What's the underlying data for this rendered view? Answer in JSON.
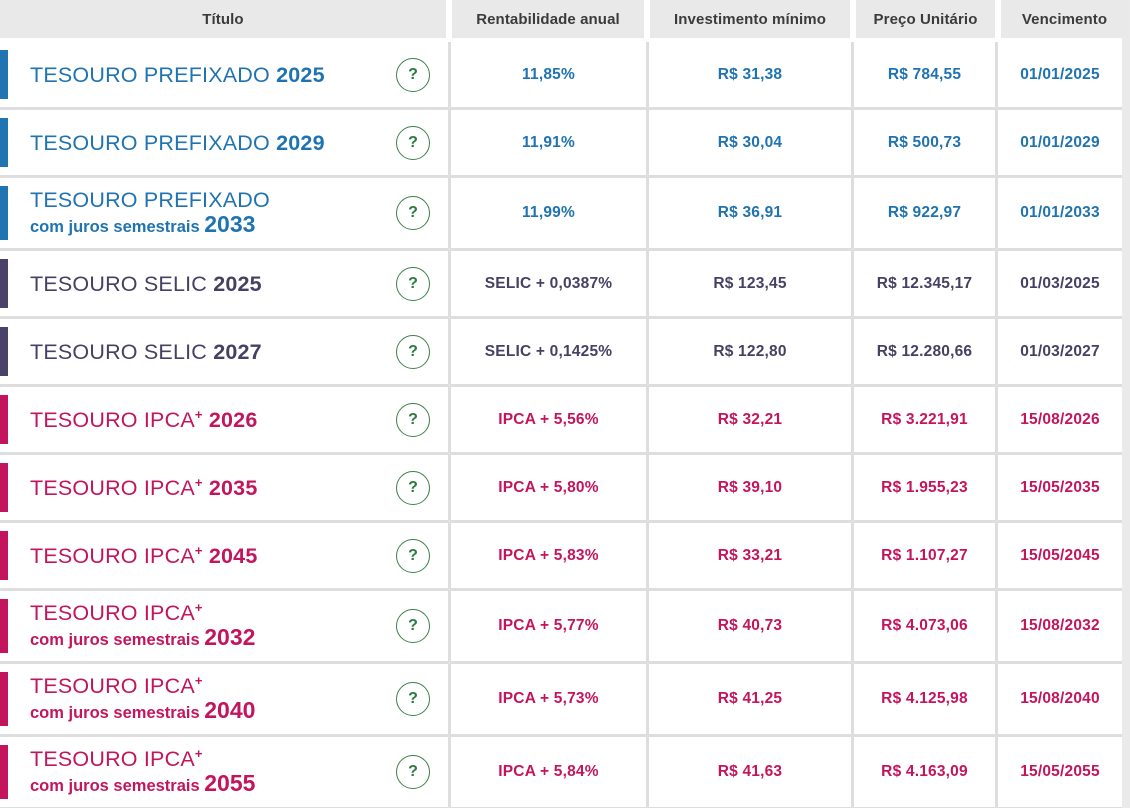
{
  "table": {
    "columns": [
      {
        "label": "Título"
      },
      {
        "label": "Rentabilidade anual"
      },
      {
        "label": "Investimento mínimo"
      },
      {
        "label": "Preço Unitário"
      },
      {
        "label": "Vencimento"
      }
    ],
    "help_icon_glyph": "?",
    "rows": [
      {
        "group": "prefixado",
        "title": "TESOURO PREFIXADO",
        "sup": "",
        "subtitle": "",
        "year": "2025",
        "rate": "11,85%",
        "min_investment": "R$ 31,38",
        "unit_price": "R$ 784,55",
        "maturity": "01/01/2025"
      },
      {
        "group": "prefixado",
        "title": "TESOURO PREFIXADO",
        "sup": "",
        "subtitle": "",
        "year": "2029",
        "rate": "11,91%",
        "min_investment": "R$ 30,04",
        "unit_price": "R$ 500,73",
        "maturity": "01/01/2029"
      },
      {
        "group": "prefixado",
        "title": "TESOURO PREFIXADO",
        "sup": "",
        "subtitle": "com juros semestrais",
        "year": "2033",
        "rate": "11,99%",
        "min_investment": "R$ 36,91",
        "unit_price": "R$ 922,97",
        "maturity": "01/01/2033"
      },
      {
        "group": "selic",
        "title": "TESOURO SELIC",
        "sup": "",
        "subtitle": "",
        "year": "2025",
        "rate": "SELIC + 0,0387%",
        "min_investment": "R$ 123,45",
        "unit_price": "R$ 12.345,17",
        "maturity": "01/03/2025"
      },
      {
        "group": "selic",
        "title": "TESOURO SELIC",
        "sup": "",
        "subtitle": "",
        "year": "2027",
        "rate": "SELIC + 0,1425%",
        "min_investment": "R$ 122,80",
        "unit_price": "R$ 12.280,66",
        "maturity": "01/03/2027"
      },
      {
        "group": "ipca",
        "title": "TESOURO IPCA",
        "sup": "+",
        "subtitle": "",
        "year": "2026",
        "rate": "IPCA + 5,56%",
        "min_investment": "R$ 32,21",
        "unit_price": "R$ 3.221,91",
        "maturity": "15/08/2026"
      },
      {
        "group": "ipca",
        "title": "TESOURO IPCA",
        "sup": "+",
        "subtitle": "",
        "year": "2035",
        "rate": "IPCA + 5,80%",
        "min_investment": "R$ 39,10",
        "unit_price": "R$ 1.955,23",
        "maturity": "15/05/2035"
      },
      {
        "group": "ipca",
        "title": "TESOURO IPCA",
        "sup": "+",
        "subtitle": "",
        "year": "2045",
        "rate": "IPCA + 5,83%",
        "min_investment": "R$ 33,21",
        "unit_price": "R$ 1.107,27",
        "maturity": "15/05/2045"
      },
      {
        "group": "ipca",
        "title": "TESOURO IPCA",
        "sup": "+",
        "subtitle": "com juros semestrais",
        "year": "2032",
        "rate": "IPCA + 5,77%",
        "min_investment": "R$ 40,73",
        "unit_price": "R$ 4.073,06",
        "maturity": "15/08/2032"
      },
      {
        "group": "ipca",
        "title": "TESOURO IPCA",
        "sup": "+",
        "subtitle": "com juros semestrais",
        "year": "2040",
        "rate": "IPCA + 5,73%",
        "min_investment": "R$ 41,25",
        "unit_price": "R$ 4.125,98",
        "maturity": "15/08/2040"
      },
      {
        "group": "ipca",
        "title": "TESOURO IPCA",
        "sup": "+",
        "subtitle": "com juros semestrais",
        "year": "2055",
        "rate": "IPCA + 5,84%",
        "min_investment": "R$ 41,63",
        "unit_price": "R$ 4.163,09",
        "maturity": "15/05/2055"
      }
    ]
  },
  "colors": {
    "prefixado": "#2074b2",
    "selic": "#4a4268",
    "ipca": "#c3155d",
    "help_green": "#2c7a3f",
    "header_bg": "#e9e9e9",
    "divider": "#dedede"
  }
}
